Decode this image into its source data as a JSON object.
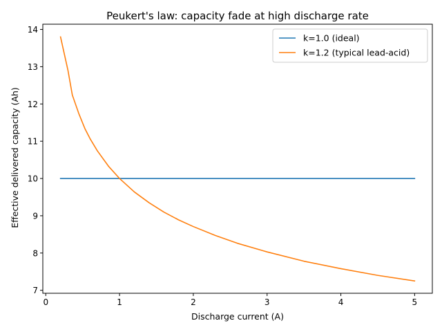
{
  "chart_data": {
    "type": "line",
    "title": "Peukert's law: capacity fade at high discharge rate",
    "xlabel": "Discharge current (A)",
    "ylabel": "Effective delivered capacity (Ah)",
    "xlim": [
      -0.04,
      5.24
    ],
    "ylim": [
      6.92,
      14.14
    ],
    "xticks": [
      0,
      1,
      2,
      3,
      4,
      5
    ],
    "yticks": [
      7,
      8,
      9,
      10,
      11,
      12,
      13,
      14
    ],
    "grid": false,
    "legend_position": "top-right",
    "series": [
      {
        "name": "k=1.0 (ideal)",
        "color": "#1f77b4",
        "x": [
          0.2,
          5.0
        ],
        "y": [
          10.0,
          10.0
        ]
      },
      {
        "name": "k=1.2 (typical lead-acid)",
        "color": "#ff7f0e",
        "x": [
          0.2,
          0.3,
          0.36,
          0.45,
          0.53,
          0.6,
          0.7,
          0.85,
          1.0,
          1.2,
          1.4,
          1.6,
          1.8,
          2.0,
          2.3,
          2.6,
          3.0,
          3.5,
          4.0,
          4.5,
          5.0
        ],
        "y": [
          13.8,
          12.91,
          12.24,
          11.73,
          11.34,
          11.07,
          10.74,
          10.33,
          10.0,
          9.64,
          9.35,
          9.1,
          8.89,
          8.71,
          8.47,
          8.26,
          8.03,
          7.78,
          7.58,
          7.4,
          7.25
        ]
      }
    ]
  }
}
